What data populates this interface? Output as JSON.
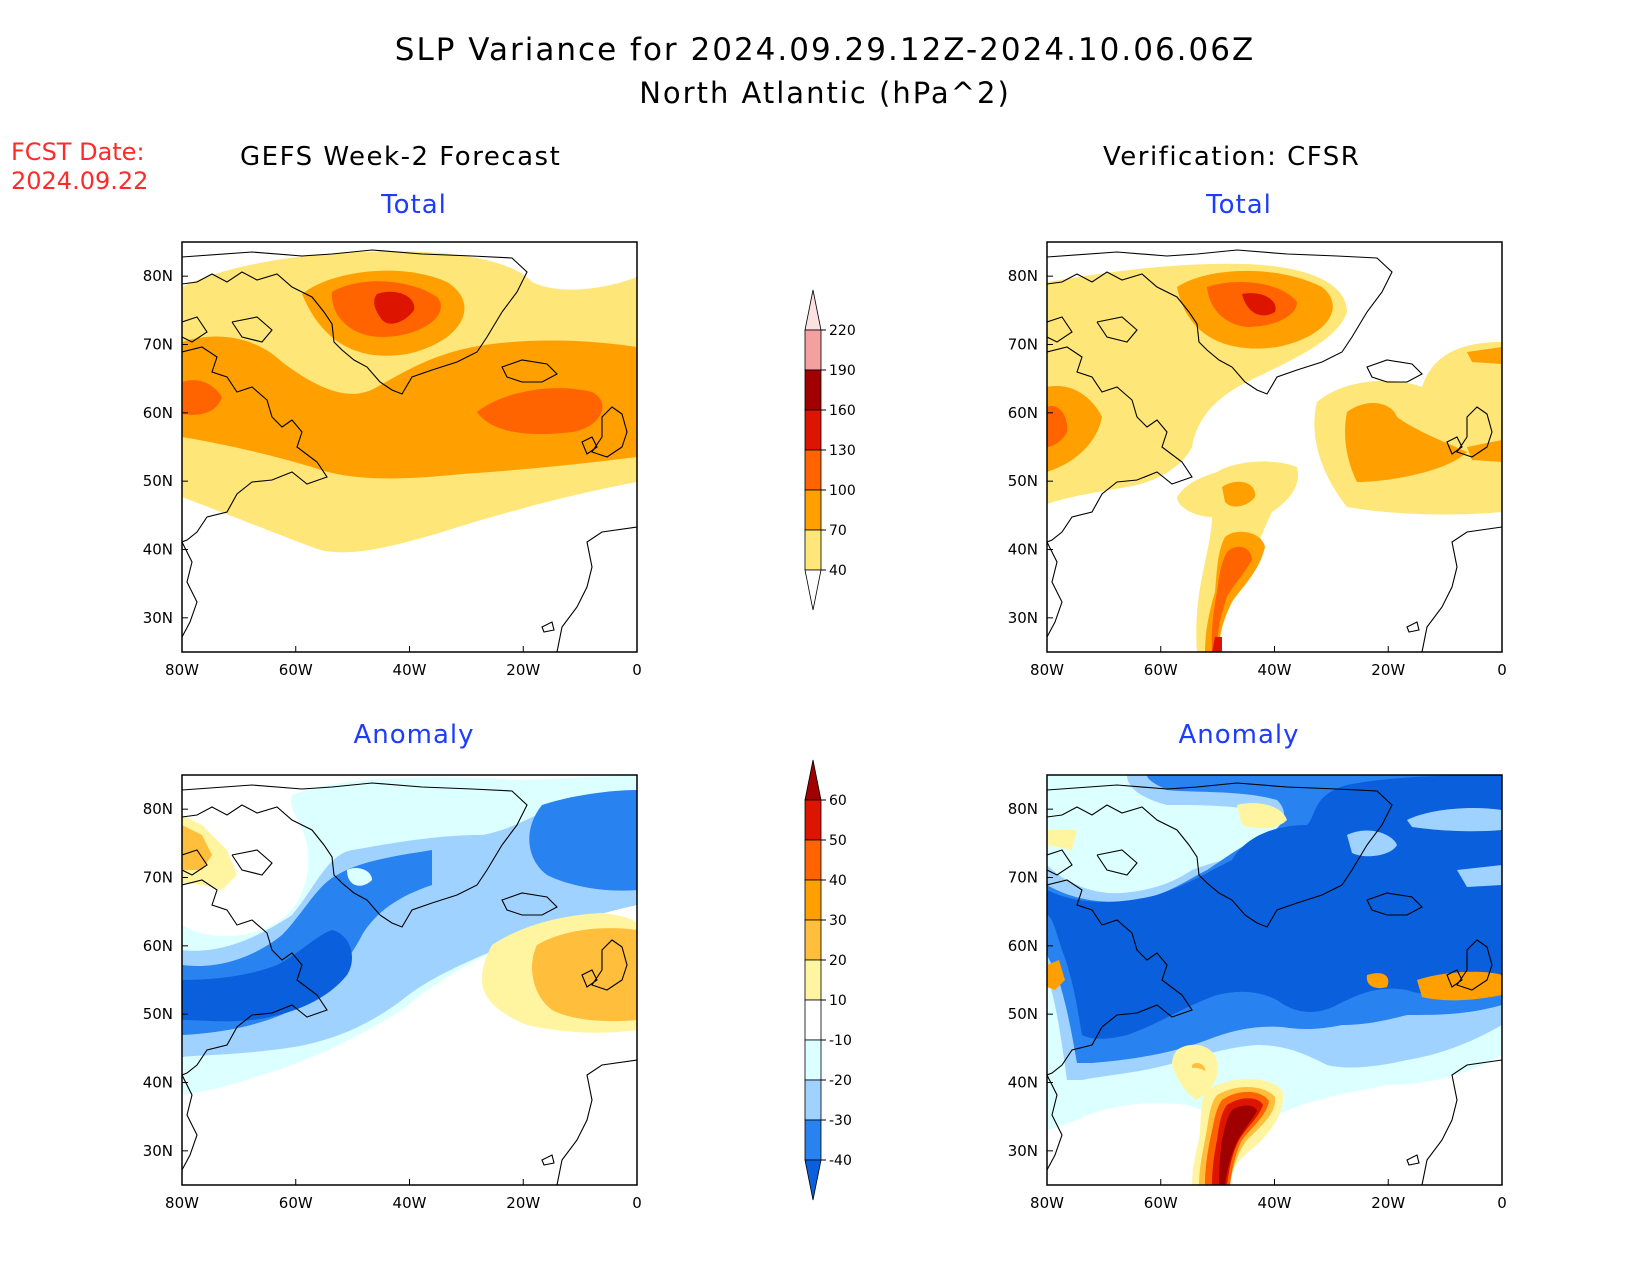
{
  "title": {
    "line1": "SLP Variance for 2024.09.29.12Z-2024.10.06.06Z",
    "line2": "North Atlantic (hPa^2)"
  },
  "forecast_date": {
    "label": "FCST Date:",
    "value": "2024.09.22"
  },
  "columns": {
    "left": "GEFS Week-2 Forecast",
    "right": "Verification: CFSR"
  },
  "panels": [
    {
      "id": "gefs-total",
      "title": "Total"
    },
    {
      "id": "cfsr-total",
      "title": "Total"
    },
    {
      "id": "gefs-anomaly",
      "title": "Anomaly"
    },
    {
      "id": "cfsr-anomaly",
      "title": "Anomaly"
    }
  ],
  "axes": {
    "lon_labels": [
      "80W",
      "60W",
      "40W",
      "20W",
      "0"
    ],
    "lat_labels": [
      "80N",
      "70N",
      "60N",
      "50N",
      "40N",
      "30N"
    ],
    "lon_range": [
      -80,
      0
    ],
    "lat_range": [
      25,
      85
    ]
  },
  "colorbars": {
    "total": {
      "levels": [
        "220",
        "190",
        "160",
        "130",
        "100",
        "70",
        "40"
      ],
      "colors": [
        "#fde0e0",
        "#f4a0a0",
        "#a00000",
        "#dc1400",
        "#ff6400",
        "#ffa000",
        "#ffe678",
        "#ffffff"
      ]
    },
    "anomaly": {
      "levels": [
        "60",
        "50",
        "40",
        "30",
        "20",
        "10",
        "-10",
        "-20",
        "-30",
        "-40"
      ],
      "colors": [
        "#a00000",
        "#dc1400",
        "#ff6400",
        "#ffa000",
        "#ffbe3c",
        "#fff5a0",
        "#ffffff",
        "#dcffff",
        "#a0d2ff",
        "#2882f0",
        "#0a5fdc"
      ]
    }
  }
}
